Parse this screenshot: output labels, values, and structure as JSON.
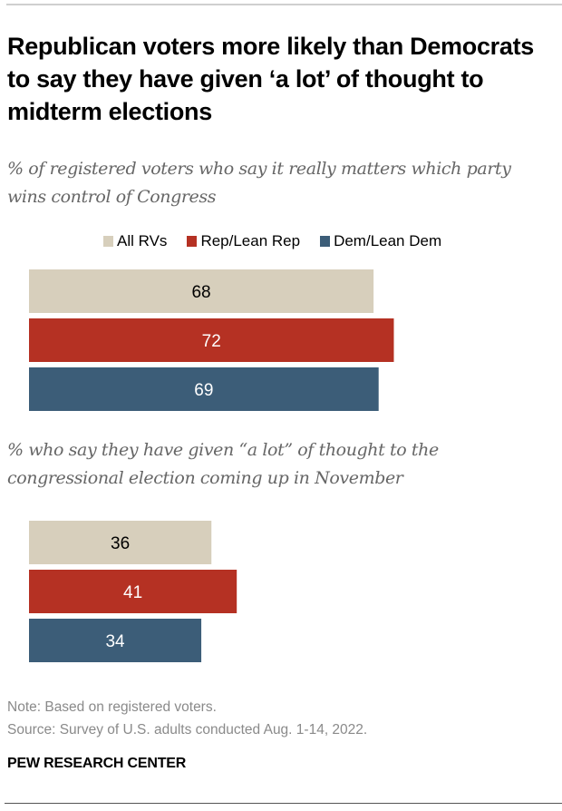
{
  "title": "Republican voters more likely than Democrats to say they have given ‘a lot’ of thought to midterm elections",
  "brand": "PEW RESEARCH CENTER",
  "note": "Note: Based on registered voters.",
  "source": "Source: Survey of U.S. adults conducted Aug. 1-14, 2022.",
  "colors": {
    "all_rvs": "#d7cfbc",
    "rep": "#b53123",
    "dem": "#3c5d78"
  },
  "chart_data": [
    {
      "type": "bar",
      "orientation": "horizontal",
      "title": "% of registered voters who say it really matters which party wins control of Congress",
      "legend": [
        "All RVs",
        "Rep/Lean Rep",
        "Dem/Lean Dem"
      ],
      "legend_position": "top",
      "series": [
        {
          "name": "All RVs",
          "value": 68,
          "label_color": "#000000"
        },
        {
          "name": "Rep/Lean Rep",
          "value": 72,
          "label_color": "#ffffff"
        },
        {
          "name": "Dem/Lean Dem",
          "value": 69,
          "label_color": "#ffffff"
        }
      ],
      "xlim": [
        0,
        100
      ],
      "grid": false
    },
    {
      "type": "bar",
      "orientation": "horizontal",
      "title": "% who say they have given “a lot” of thought to the congressional election coming up in November",
      "series": [
        {
          "name": "All RVs",
          "value": 36,
          "label_color": "#000000"
        },
        {
          "name": "Rep/Lean Rep",
          "value": 41,
          "label_color": "#ffffff"
        },
        {
          "name": "Dem/Lean Dem",
          "value": 34,
          "label_color": "#ffffff"
        }
      ],
      "xlim": [
        0,
        100
      ],
      "grid": false
    }
  ]
}
